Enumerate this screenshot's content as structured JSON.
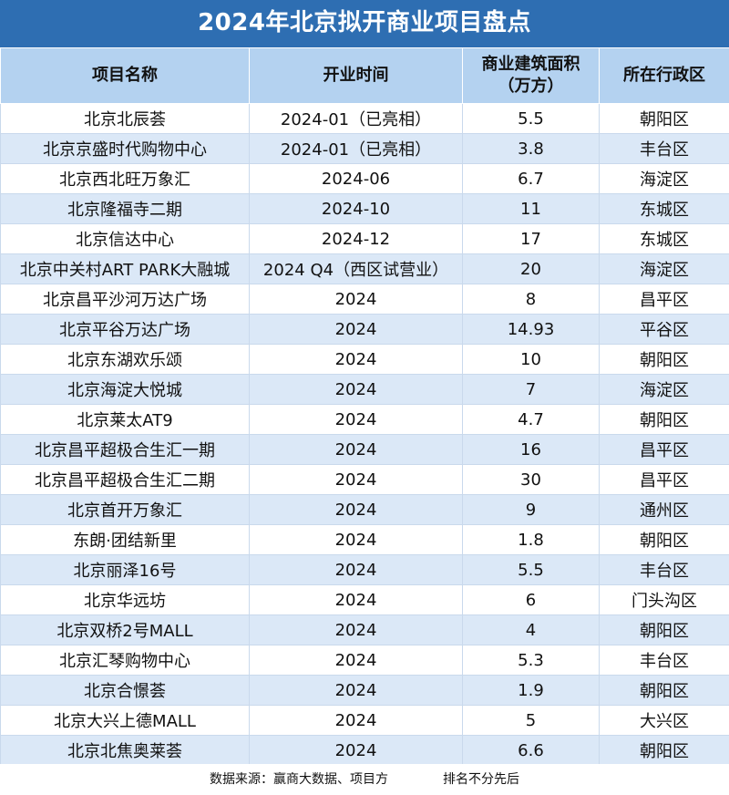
{
  "title": "2024年北京拟开商业项目盘点",
  "columns": {
    "name": "项目名称",
    "date": "开业时间",
    "area_line1": "商业建筑面积",
    "area_line2": "（万方）",
    "district": "所在行政区"
  },
  "rows": [
    {
      "name": "北京北辰荟",
      "date": "2024-01（已亮相）",
      "area": "5.5",
      "district": "朝阳区"
    },
    {
      "name": "北京京盛时代购物中心",
      "date": "2024-01（已亮相）",
      "area": "3.8",
      "district": "丰台区"
    },
    {
      "name": "北京西北旺万象汇",
      "date": "2024-06",
      "area": "6.7",
      "district": "海淀区"
    },
    {
      "name": "北京隆福寺二期",
      "date": "2024-10",
      "area": "11",
      "district": "东城区"
    },
    {
      "name": "北京信达中心",
      "date": "2024-12",
      "area": "17",
      "district": "东城区"
    },
    {
      "name": "北京中关村ART PARK大融城",
      "date": "2024 Q4（西区试营业）",
      "area": "20",
      "district": "海淀区"
    },
    {
      "name": "北京昌平沙河万达广场",
      "date": "2024",
      "area": "8",
      "district": "昌平区"
    },
    {
      "name": "北京平谷万达广场",
      "date": "2024",
      "area": "14.93",
      "district": "平谷区"
    },
    {
      "name": "北京东湖欢乐颂",
      "date": "2024",
      "area": "10",
      "district": "朝阳区"
    },
    {
      "name": "北京海淀大悦城",
      "date": "2024",
      "area": "7",
      "district": "海淀区"
    },
    {
      "name": "北京莱太AT9",
      "date": "2024",
      "area": "4.7",
      "district": "朝阳区"
    },
    {
      "name": "北京昌平超极合生汇一期",
      "date": "2024",
      "area": "16",
      "district": "昌平区"
    },
    {
      "name": "北京昌平超极合生汇二期",
      "date": "2024",
      "area": "30",
      "district": "昌平区"
    },
    {
      "name": "北京首开万象汇",
      "date": "2024",
      "area": "9",
      "district": "通州区"
    },
    {
      "name": "东朗·团结新里",
      "date": "2024",
      "area": "1.8",
      "district": "朝阳区"
    },
    {
      "name": "北京丽泽16号",
      "date": "2024",
      "area": "5.5",
      "district": "丰台区"
    },
    {
      "name": "北京华远坊",
      "date": "2024",
      "area": "6",
      "district": "门头沟区"
    },
    {
      "name": "北京双桥2号MALL",
      "date": "2024",
      "area": "4",
      "district": "朝阳区"
    },
    {
      "name": "北京汇琴购物中心",
      "date": "2024",
      "area": "5.3",
      "district": "丰台区"
    },
    {
      "name": "北京合憬荟",
      "date": "2024",
      "area": "1.9",
      "district": "朝阳区"
    },
    {
      "name": "北京大兴上德MALL",
      "date": "2024",
      "area": "5",
      "district": "大兴区"
    },
    {
      "name": "北京北焦奥莱荟",
      "date": "2024",
      "area": "6.6",
      "district": "朝阳区"
    }
  ],
  "footer": {
    "source": "数据来源：赢商大数据、项目方",
    "note": "排名不分先后"
  },
  "colors": {
    "title_bg": "#2e6eb2",
    "header_bg": "#b4d2f0",
    "row_alt_bg": "#dbe8f7"
  }
}
